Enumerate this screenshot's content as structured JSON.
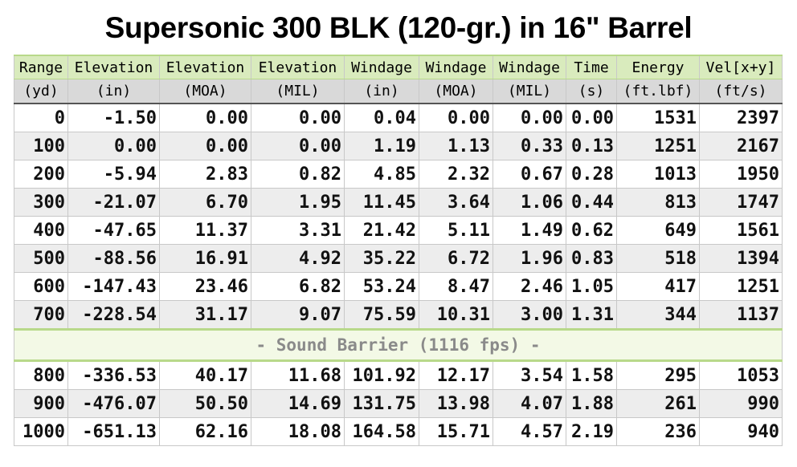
{
  "title": "Supersonic 300 BLK (120-gr.) in 16\" Barrel",
  "headers": [
    {
      "label": "Range",
      "unit": "(yd)"
    },
    {
      "label": "Elevation",
      "unit": "(in)"
    },
    {
      "label": "Elevation",
      "unit": "(MOA)"
    },
    {
      "label": "Elevation",
      "unit": "(MIL)"
    },
    {
      "label": "Windage",
      "unit": "(in)"
    },
    {
      "label": "Windage",
      "unit": "(MOA)"
    },
    {
      "label": "Windage",
      "unit": "(MIL)"
    },
    {
      "label": "Time",
      "unit": "(s)"
    },
    {
      "label": "Energy",
      "unit": "(ft.lbf)"
    },
    {
      "label": "Vel[x+y]",
      "unit": "(ft/s)"
    }
  ],
  "rows": [
    [
      "0",
      "-1.50",
      "0.00",
      "0.00",
      "0.04",
      "0.00",
      "0.00",
      "0.00",
      "1531",
      "2397"
    ],
    [
      "100",
      "0.00",
      "0.00",
      "0.00",
      "1.19",
      "1.13",
      "0.33",
      "0.13",
      "1251",
      "2167"
    ],
    [
      "200",
      "-5.94",
      "2.83",
      "0.82",
      "4.85",
      "2.32",
      "0.67",
      "0.28",
      "1013",
      "1950"
    ],
    [
      "300",
      "-21.07",
      "6.70",
      "1.95",
      "11.45",
      "3.64",
      "1.06",
      "0.44",
      "813",
      "1747"
    ],
    [
      "400",
      "-47.65",
      "11.37",
      "3.31",
      "21.42",
      "5.11",
      "1.49",
      "0.62",
      "649",
      "1561"
    ],
    [
      "500",
      "-88.56",
      "16.91",
      "4.92",
      "35.22",
      "6.72",
      "1.96",
      "0.83",
      "518",
      "1394"
    ],
    [
      "600",
      "-147.43",
      "23.46",
      "6.82",
      "53.24",
      "8.47",
      "2.46",
      "1.05",
      "417",
      "1251"
    ],
    [
      "700",
      "-228.54",
      "31.17",
      "9.07",
      "75.59",
      "10.31",
      "3.00",
      "1.31",
      "344",
      "1137"
    ]
  ],
  "sound_barrier_label": "- Sound Barrier (1116 fps) -",
  "rows_after": [
    [
      "800",
      "-336.53",
      "40.17",
      "11.68",
      "101.92",
      "12.17",
      "3.54",
      "1.58",
      "295",
      "1053"
    ],
    [
      "900",
      "-476.07",
      "50.50",
      "14.69",
      "131.75",
      "13.98",
      "4.07",
      "1.88",
      "261",
      "990"
    ],
    [
      "1000",
      "-651.13",
      "62.16",
      "18.08",
      "164.58",
      "15.71",
      "4.57",
      "2.19",
      "236",
      "940"
    ]
  ]
}
